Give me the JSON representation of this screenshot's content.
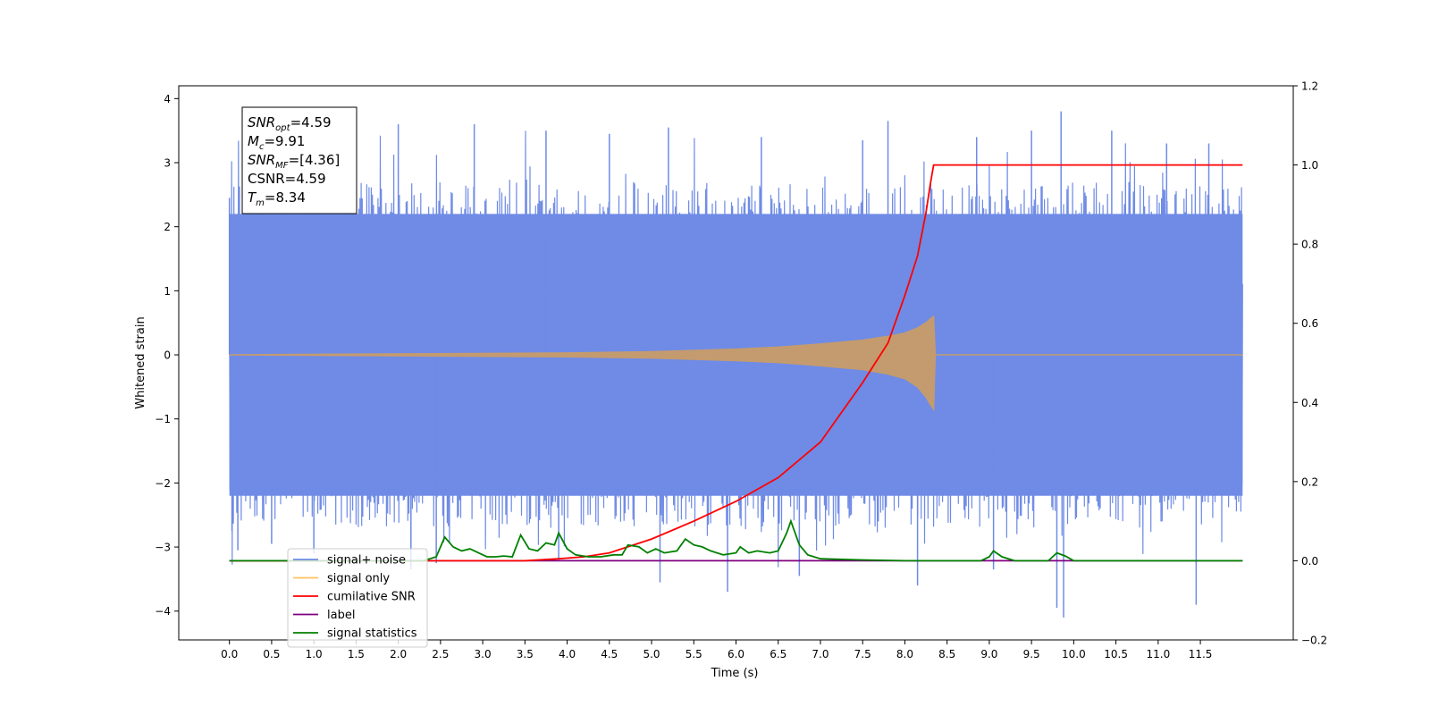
{
  "chart_data": {
    "type": "line",
    "xlabel": "Time (s)",
    "ylabel": "Whitened strain",
    "xlim": [
      -0.6,
      12.6
    ],
    "ylim": [
      -4.45,
      4.2
    ],
    "y2lim": [
      -0.2,
      1.2
    ],
    "x_ticks": [
      0.0,
      0.5,
      1.0,
      1.5,
      2.0,
      2.5,
      3.0,
      3.5,
      4.0,
      4.5,
      5.0,
      5.5,
      6.0,
      6.5,
      7.0,
      7.5,
      8.0,
      8.5,
      9.0,
      9.5,
      10.0,
      10.5,
      11.0,
      11.5
    ],
    "x_tick_labels": [
      "0.0",
      "0.5",
      "1.0",
      "1.5",
      "2.0",
      "2.5",
      "3.0",
      "3.5",
      "4.0",
      "4.5",
      "5.0",
      "5.5",
      "6.0",
      "6.5",
      "7.0",
      "7.5",
      "8.0",
      "8.5",
      "9.0",
      "9.5",
      "10.0",
      "10.5",
      "11.0",
      "11.5"
    ],
    "y_ticks": [
      -4,
      -3,
      -2,
      -1,
      0,
      1,
      2,
      3,
      4
    ],
    "y_tick_labels": [
      "−4",
      "−3",
      "−2",
      "−1",
      "0",
      "1",
      "2",
      "3",
      "4"
    ],
    "y2_ticks": [
      -0.2,
      0.0,
      0.2,
      0.4,
      0.6,
      0.8,
      1.0,
      1.2
    ],
    "y2_tick_labels": [
      "−0.2",
      "0.0",
      "0.2",
      "0.4",
      "0.6",
      "0.8",
      "1.0",
      "1.2"
    ],
    "grid": false,
    "legend_position": "bottom-left",
    "annotation": {
      "lines": [
        {
          "main": "SNR",
          "sub": "opt",
          "rest": "=4.59"
        },
        {
          "main": "M",
          "sub": "c",
          "rest": "=9.91"
        },
        {
          "main": "SNR",
          "sub": "MF",
          "rest": "=[4.36]"
        },
        {
          "main": "CSNR",
          "sub": "",
          "rest": "=4.59"
        },
        {
          "main": "T",
          "sub": "m",
          "rest": "=8.34"
        }
      ]
    },
    "series": [
      {
        "name": "signal+ noise",
        "axis": "left",
        "color": "#6f8be6",
        "x_range": [
          0.0,
          12.0
        ],
        "envelope_upper": 2.2,
        "envelope_lower": -2.2,
        "spikes": [
          {
            "x": 0.0,
            "y": 2.45
          },
          {
            "x": 0.03,
            "y": -2.75
          },
          {
            "x": 0.1,
            "y": -3.05
          },
          {
            "x": 0.5,
            "y": -2.95
          },
          {
            "x": 1.0,
            "y": -3.1
          },
          {
            "x": 1.45,
            "y": 3.35
          },
          {
            "x": 2.0,
            "y": 3.6
          },
          {
            "x": 2.15,
            "y": -3.35
          },
          {
            "x": 2.45,
            "y": -3.25
          },
          {
            "x": 2.9,
            "y": 3.6
          },
          {
            "x": 3.75,
            "y": 3.5
          },
          {
            "x": 3.9,
            "y": -3.2
          },
          {
            "x": 4.5,
            "y": 3.45
          },
          {
            "x": 5.1,
            "y": -3.55
          },
          {
            "x": 5.2,
            "y": 3.55
          },
          {
            "x": 5.9,
            "y": -3.7
          },
          {
            "x": 6.3,
            "y": 3.4
          },
          {
            "x": 6.75,
            "y": -3.45
          },
          {
            "x": 7.5,
            "y": 3.35
          },
          {
            "x": 7.8,
            "y": 3.65
          },
          {
            "x": 8.15,
            "y": -3.6
          },
          {
            "x": 8.85,
            "y": 3.4
          },
          {
            "x": 9.05,
            "y": -3.35
          },
          {
            "x": 9.5,
            "y": 3.5
          },
          {
            "x": 9.8,
            "y": -3.95
          },
          {
            "x": 9.85,
            "y": 3.8
          },
          {
            "x": 9.88,
            "y": -4.1
          },
          {
            "x": 10.45,
            "y": 3.5
          },
          {
            "x": 11.1,
            "y": 3.3
          },
          {
            "x": 11.45,
            "y": -3.9
          },
          {
            "x": 11.6,
            "y": 3.3
          },
          {
            "x": 11.95,
            "y": -1.7
          }
        ]
      },
      {
        "name": "signal only",
        "axis": "left",
        "color": "#c49b6e",
        "points": [
          [
            0.0,
            0.0
          ],
          [
            4.0,
            0.03
          ],
          [
            5.0,
            0.05
          ],
          [
            6.0,
            0.09
          ],
          [
            6.5,
            0.12
          ],
          [
            7.0,
            0.17
          ],
          [
            7.5,
            0.23
          ],
          [
            7.8,
            0.29
          ],
          [
            8.0,
            0.34
          ],
          [
            8.15,
            0.42
          ],
          [
            8.25,
            0.5
          ],
          [
            8.3,
            0.56
          ],
          [
            8.34,
            0.6
          ],
          [
            8.36,
            0.0
          ],
          [
            12.0,
            0.0
          ]
        ],
        "lower_points": [
          [
            0.0,
            0.0
          ],
          [
            4.0,
            -0.03
          ],
          [
            5.0,
            -0.05
          ],
          [
            6.0,
            -0.09
          ],
          [
            6.5,
            -0.12
          ],
          [
            7.0,
            -0.17
          ],
          [
            7.5,
            -0.23
          ],
          [
            7.8,
            -0.3
          ],
          [
            8.0,
            -0.37
          ],
          [
            8.15,
            -0.5
          ],
          [
            8.25,
            -0.66
          ],
          [
            8.3,
            -0.77
          ],
          [
            8.34,
            -0.85
          ],
          [
            8.36,
            0.0
          ],
          [
            12.0,
            0.0
          ]
        ]
      },
      {
        "name": "cumilative SNR",
        "axis": "right",
        "color": "#ff0000",
        "points": [
          [
            0.0,
            0.0
          ],
          [
            3.5,
            0.0
          ],
          [
            3.9,
            0.005
          ],
          [
            4.2,
            0.01
          ],
          [
            4.5,
            0.02
          ],
          [
            5.0,
            0.055
          ],
          [
            5.5,
            0.1
          ],
          [
            6.0,
            0.15
          ],
          [
            6.5,
            0.21
          ],
          [
            7.0,
            0.3
          ],
          [
            7.5,
            0.45
          ],
          [
            7.8,
            0.55
          ],
          [
            8.0,
            0.67
          ],
          [
            8.15,
            0.77
          ],
          [
            8.25,
            0.88
          ],
          [
            8.3,
            0.95
          ],
          [
            8.34,
            1.0
          ],
          [
            12.0,
            1.0
          ]
        ]
      },
      {
        "name": "label",
        "axis": "right",
        "color": "#800080",
        "points": [
          [
            0.0,
            0.0
          ],
          [
            12.0,
            0.0
          ]
        ]
      },
      {
        "name": "signal statistics",
        "axis": "right",
        "color": "#008000",
        "points": [
          [
            0.0,
            0.0
          ],
          [
            2.3,
            0.0
          ],
          [
            2.45,
            0.01
          ],
          [
            2.55,
            0.06
          ],
          [
            2.65,
            0.035
          ],
          [
            2.75,
            0.025
          ],
          [
            2.85,
            0.03
          ],
          [
            2.95,
            0.02
          ],
          [
            3.05,
            0.01
          ],
          [
            3.15,
            0.01
          ],
          [
            3.25,
            0.012
          ],
          [
            3.35,
            0.01
          ],
          [
            3.45,
            0.065
          ],
          [
            3.55,
            0.03
          ],
          [
            3.65,
            0.025
          ],
          [
            3.75,
            0.045
          ],
          [
            3.85,
            0.04
          ],
          [
            3.9,
            0.07
          ],
          [
            4.0,
            0.03
          ],
          [
            4.1,
            0.015
          ],
          [
            4.25,
            0.01
          ],
          [
            4.4,
            0.01
          ],
          [
            4.55,
            0.015
          ],
          [
            4.65,
            0.015
          ],
          [
            4.72,
            0.04
          ],
          [
            4.85,
            0.035
          ],
          [
            4.95,
            0.02
          ],
          [
            5.05,
            0.03
          ],
          [
            5.15,
            0.02
          ],
          [
            5.3,
            0.025
          ],
          [
            5.4,
            0.055
          ],
          [
            5.5,
            0.04
          ],
          [
            5.6,
            0.035
          ],
          [
            5.7,
            0.025
          ],
          [
            5.85,
            0.015
          ],
          [
            6.0,
            0.02
          ],
          [
            6.05,
            0.035
          ],
          [
            6.15,
            0.02
          ],
          [
            6.25,
            0.025
          ],
          [
            6.4,
            0.02
          ],
          [
            6.5,
            0.025
          ],
          [
            6.6,
            0.07
          ],
          [
            6.65,
            0.1
          ],
          [
            6.75,
            0.04
          ],
          [
            6.85,
            0.015
          ],
          [
            7.0,
            0.005
          ],
          [
            7.5,
            0.002
          ],
          [
            8.0,
            0.0
          ],
          [
            8.9,
            0.0
          ],
          [
            9.0,
            0.01
          ],
          [
            9.05,
            0.025
          ],
          [
            9.15,
            0.01
          ],
          [
            9.3,
            0.0
          ],
          [
            9.7,
            0.0
          ],
          [
            9.8,
            0.02
          ],
          [
            9.9,
            0.012
          ],
          [
            10.0,
            0.0
          ],
          [
            12.0,
            0.0
          ]
        ]
      }
    ]
  }
}
